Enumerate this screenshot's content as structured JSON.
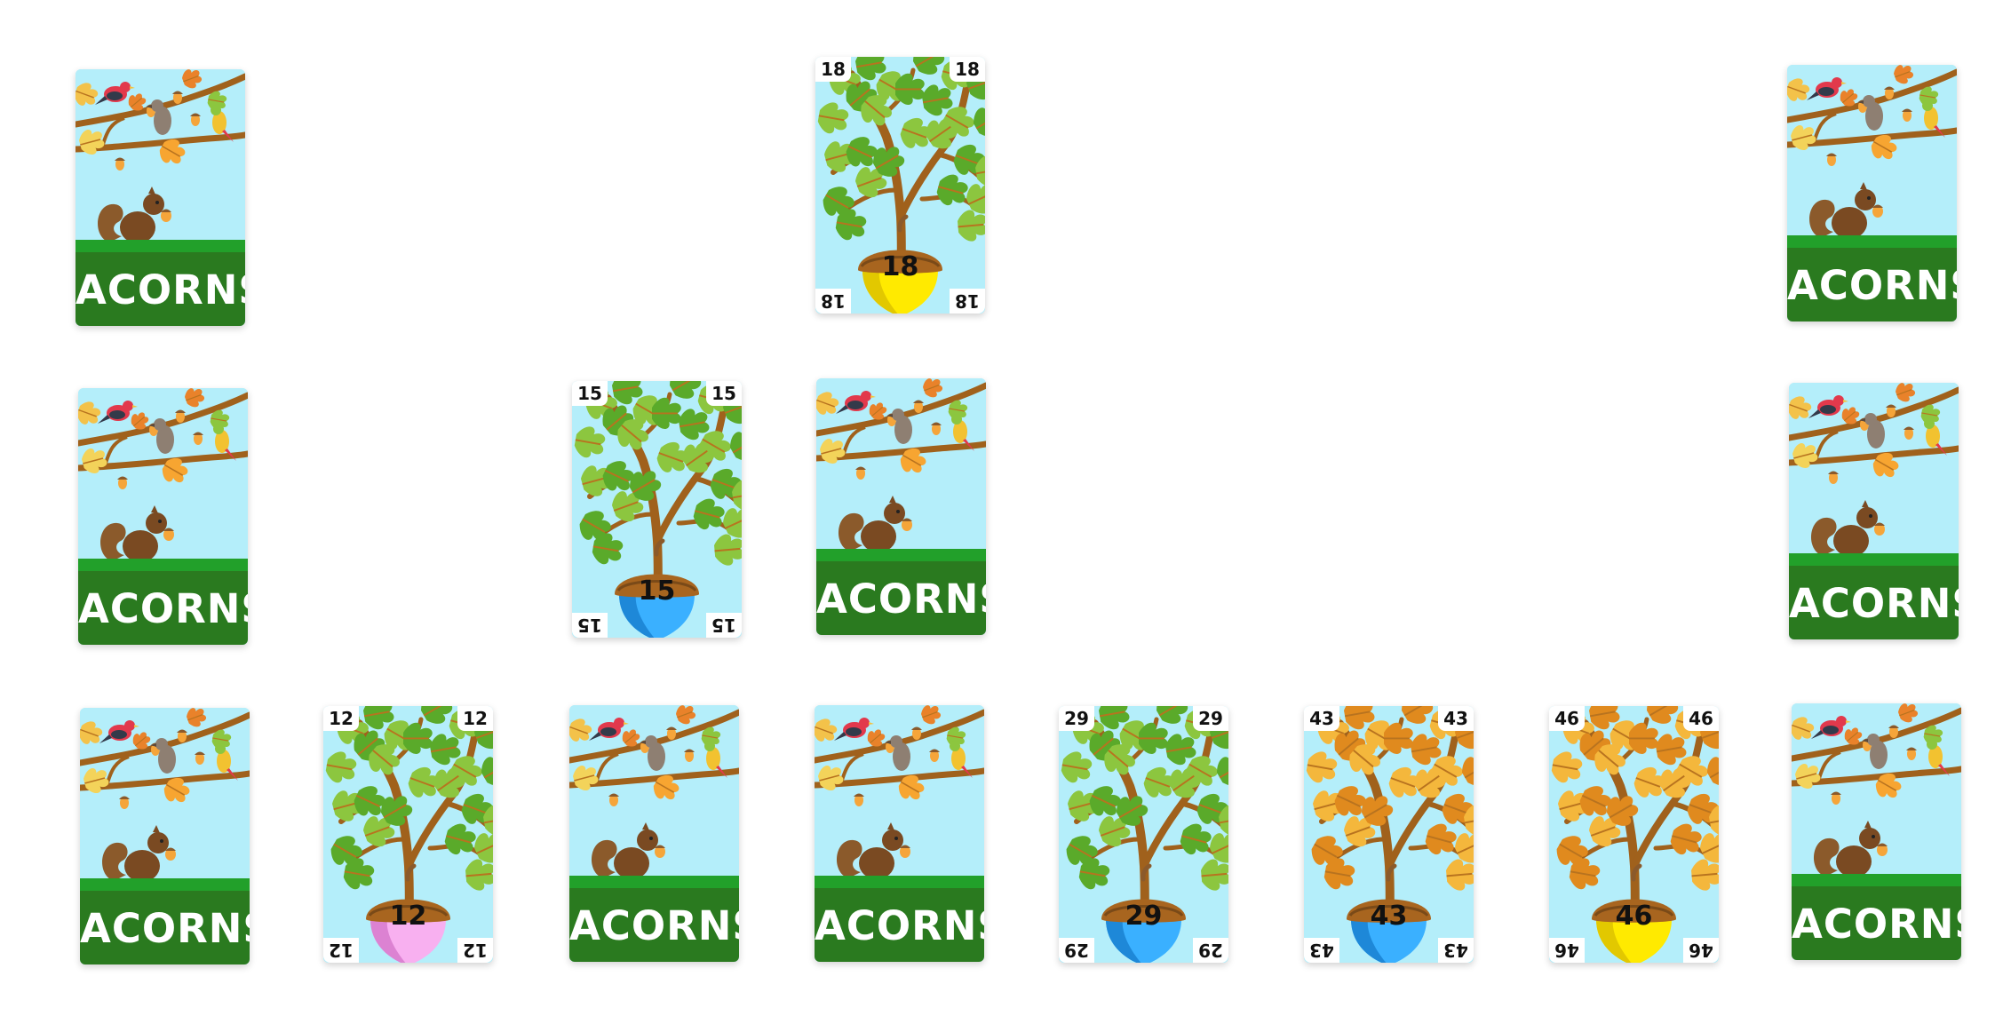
{
  "back_title": "ACORNS",
  "leaf_colors": {
    "green": [
      "#8cc63f",
      "#5aaa2a"
    ],
    "orange": [
      "#f4b73c",
      "#e08a1e"
    ]
  },
  "acorn_colors": {
    "yellow": [
      "#ffea00",
      "#e2c800"
    ],
    "blue": [
      "#3ab0ff",
      "#1e88d8"
    ],
    "pink": [
      "#f8b0f0",
      "#dc82d2"
    ]
  },
  "cards": [
    {
      "id": "r1c1",
      "face": "back"
    },
    {
      "id": "r1c4",
      "face": "front",
      "number": "18",
      "leaves": "green",
      "acorn": "yellow"
    },
    {
      "id": "r1c8",
      "face": "back"
    },
    {
      "id": "r2c1",
      "face": "back"
    },
    {
      "id": "r2c3",
      "face": "front",
      "number": "15",
      "leaves": "green",
      "acorn": "blue"
    },
    {
      "id": "r2c4",
      "face": "back"
    },
    {
      "id": "r2c8",
      "face": "back"
    },
    {
      "id": "r3c1",
      "face": "back"
    },
    {
      "id": "r3c2",
      "face": "front",
      "number": "12",
      "leaves": "green",
      "acorn": "pink"
    },
    {
      "id": "r3c3",
      "face": "back"
    },
    {
      "id": "r3c4",
      "face": "back"
    },
    {
      "id": "r3c5",
      "face": "front",
      "number": "29",
      "leaves": "green",
      "acorn": "blue"
    },
    {
      "id": "r3c6",
      "face": "front",
      "number": "43",
      "leaves": "orange",
      "acorn": "blue"
    },
    {
      "id": "r3c7",
      "face": "front",
      "number": "46",
      "leaves": "orange",
      "acorn": "yellow"
    },
    {
      "id": "r3c8",
      "face": "back"
    }
  ]
}
